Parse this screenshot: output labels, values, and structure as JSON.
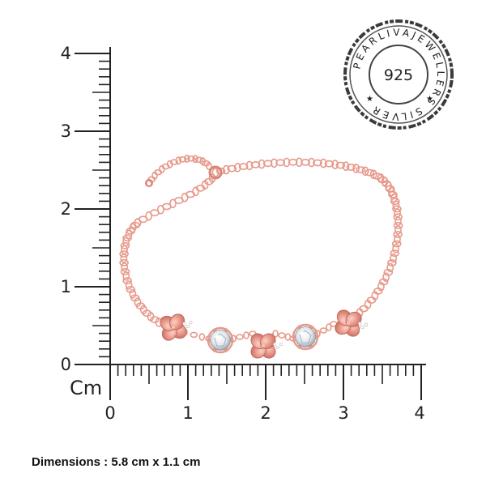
{
  "ruler": {
    "unit_label": "Cm",
    "vertical_ticks": [
      "0",
      "1",
      "2",
      "3",
      "4"
    ],
    "horizontal_ticks": [
      "0",
      "1",
      "2",
      "3",
      "4"
    ]
  },
  "seal": {
    "center_text": "925",
    "ring_text": "PEARLIVAJEWELLERS SILVER"
  },
  "product": {
    "metal_color": "#e7998a",
    "stone_color": "#eef2f6"
  },
  "caption": {
    "dimensions": "Dimensions : 5.8 cm x 1.1 cm"
  }
}
